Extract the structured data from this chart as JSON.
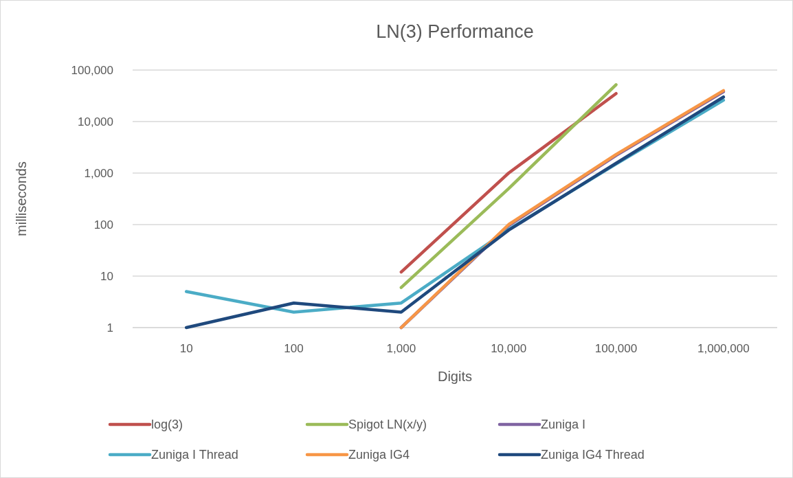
{
  "chart_data": {
    "type": "line",
    "title": "LN(3) Performance",
    "xlabel": "Digits",
    "ylabel": "milliseconds",
    "categories": [
      "10",
      "100",
      "1,000",
      "10,000",
      "100,000",
      "1,000,000"
    ],
    "log": "y",
    "ylim": [
      1,
      100000
    ],
    "yticks": [
      1,
      10,
      100,
      {
        "value": 1000,
        "label": "1,000"
      },
      {
        "value": 10000,
        "label": "10,000"
      },
      {
        "value": 100000,
        "label": "100,000"
      }
    ],
    "grid": "y",
    "legend": "bottom",
    "marker": "none",
    "line_style": "solid",
    "series": [
      {
        "name": "log(3)",
        "color": "#c0504d",
        "values": [
          null,
          null,
          12,
          1000,
          35000,
          null
        ]
      },
      {
        "name": "Spigot LN(x/y)",
        "color": "#9bbb59",
        "values": [
          null,
          null,
          6,
          500,
          52000,
          null
        ]
      },
      {
        "name": "Zuniga I",
        "color": "#8064a2",
        "values": [
          null,
          null,
          1,
          95,
          2200,
          38000
        ]
      },
      {
        "name": "Zuniga I Thread",
        "color": "#4bacc6",
        "values": [
          5,
          2,
          3,
          80,
          1500,
          26000
        ]
      },
      {
        "name": "Zuniga IG4",
        "color": "#f79646",
        "values": [
          null,
          null,
          1,
          100,
          2300,
          40000
        ]
      },
      {
        "name": "Zuniga IG4 Thread",
        "color": "#1f497d",
        "values": [
          1,
          3,
          2,
          78,
          1550,
          30000
        ]
      }
    ]
  }
}
